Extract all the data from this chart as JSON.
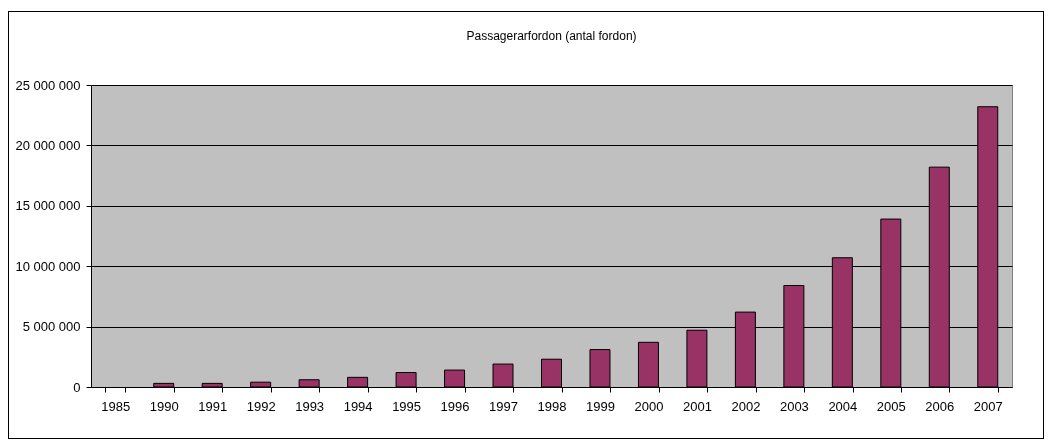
{
  "chart_data": {
    "type": "bar",
    "title": "Passagerarfordon (antal fordon)",
    "categories": [
      "1985",
      "1990",
      "1991",
      "1992",
      "1993",
      "1994",
      "1995",
      "1996",
      "1997",
      "1998",
      "1999",
      "2000",
      "2001",
      "2002",
      "2003",
      "2004",
      "2005",
      "2006",
      "2007"
    ],
    "values": [
      null,
      300000,
      300000,
      400000,
      600000,
      800000,
      1200000,
      1400000,
      1900000,
      2300000,
      3100000,
      3700000,
      4700000,
      6200000,
      8400000,
      10700000,
      13900000,
      18200000,
      23200000
    ],
    "color": "#993366",
    "ylim": [
      0,
      25000000
    ],
    "yticks": [
      {
        "value": 0,
        "label": "0"
      },
      {
        "value": 5000000,
        "label": "5 000 000"
      },
      {
        "value": 10000000,
        "label": "10 000 000"
      },
      {
        "value": 15000000,
        "label": "15 000 000"
      },
      {
        "value": 20000000,
        "label": "20 000 000"
      },
      {
        "value": 25000000,
        "label": "25 000 000"
      }
    ],
    "grid": "y"
  }
}
